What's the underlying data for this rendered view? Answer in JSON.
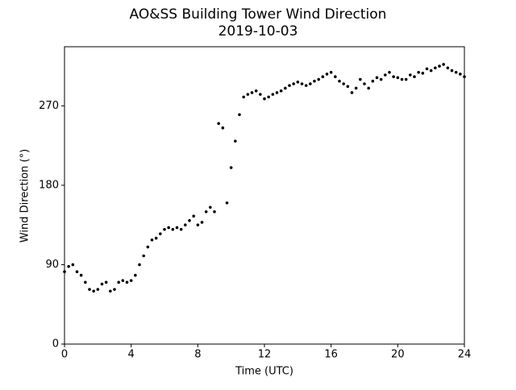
{
  "chart_data": {
    "type": "scatter",
    "title": "AO&SS Building Tower Wind Direction",
    "subtitle": "2019-10-03",
    "x_label": "Time (UTC)",
    "y_label": "Wind Direction (°)",
    "x": [
      0,
      0.25,
      0.5,
      0.75,
      1,
      1.25,
      1.5,
      1.75,
      2,
      2.25,
      2.5,
      2.75,
      3,
      3.25,
      3.5,
      3.75,
      4,
      4.25,
      4.5,
      4.75,
      5,
      5.25,
      5.5,
      5.75,
      6,
      6.25,
      6.5,
      6.75,
      7,
      7.25,
      7.5,
      7.75,
      8,
      8.25,
      8.5,
      8.75,
      9,
      9.25,
      9.5,
      9.75,
      10,
      10.25,
      10.5,
      10.75,
      11,
      11.25,
      11.5,
      11.75,
      12,
      12.25,
      12.5,
      12.75,
      13,
      13.25,
      13.5,
      13.75,
      14,
      14.25,
      14.5,
      14.75,
      15,
      15.25,
      15.5,
      15.75,
      16,
      16.25,
      16.5,
      16.75,
      17,
      17.25,
      17.5,
      17.75,
      18,
      18.25,
      18.5,
      18.75,
      19,
      19.25,
      19.5,
      19.75,
      20,
      20.25,
      20.5,
      20.75,
      21,
      21.25,
      21.5,
      21.75,
      22,
      22.25,
      22.5,
      22.75,
      23,
      23.25,
      23.5,
      23.75,
      24
    ],
    "values": [
      82,
      88,
      90,
      82,
      78,
      70,
      62,
      60,
      62,
      68,
      70,
      60,
      62,
      70,
      72,
      70,
      72,
      78,
      90,
      100,
      110,
      118,
      120,
      125,
      130,
      132,
      130,
      132,
      130,
      135,
      140,
      145,
      135,
      138,
      150,
      155,
      150,
      250,
      245,
      160,
      200,
      230,
      260,
      280,
      283,
      285,
      287,
      283,
      278,
      280,
      283,
      285,
      287,
      290,
      293,
      295,
      297,
      295,
      293,
      295,
      298,
      300,
      303,
      306,
      308,
      303,
      298,
      295,
      292,
      285,
      290,
      300,
      295,
      290,
      298,
      302,
      300,
      305,
      308,
      303,
      302,
      300,
      300,
      305,
      303,
      308,
      307,
      312,
      310,
      313,
      315,
      317,
      313,
      310,
      308,
      306,
      303
    ],
    "color": "#000000",
    "xlim": [
      0,
      24
    ],
    "xticks": [
      0,
      4,
      8,
      12,
      16,
      20,
      24
    ],
    "ylim": [
      0,
      337
    ],
    "yticks": [
      0,
      90,
      180,
      270
    ],
    "grid": false
  }
}
